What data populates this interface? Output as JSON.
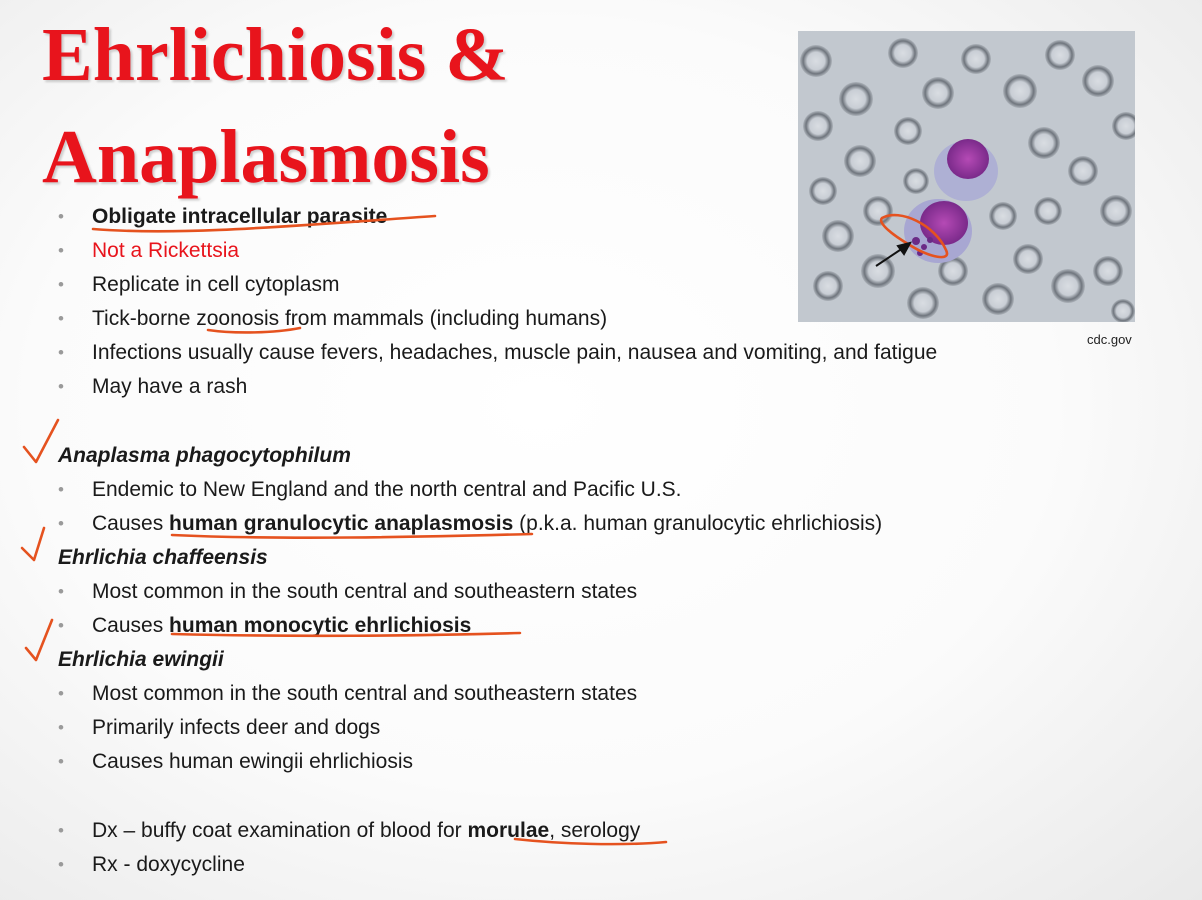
{
  "title": [
    "Ehrlichiosis &",
    "Anaplasmosis"
  ],
  "intro_bullets": [
    {
      "parts": [
        {
          "text": "Obligate intracellular parasite",
          "bold": true
        }
      ]
    },
    {
      "parts": [
        {
          "text": "Not a Rickettsia",
          "red": true
        }
      ]
    },
    {
      "parts": [
        {
          "text": "Replicate in cell cytoplasm"
        }
      ]
    },
    {
      "parts": [
        {
          "text": "Tick-borne zoonosis from mammals (including humans)"
        }
      ]
    },
    {
      "parts": [
        {
          "text": "Infections usually cause fevers, headaches, muscle pain, nausea and vomiting, and fatigue"
        }
      ]
    },
    {
      "parts": [
        {
          "text": "May have a rash"
        }
      ]
    }
  ],
  "sections": [
    {
      "heading": "Anaplasma phagocytophilum",
      "bullets": [
        {
          "parts": [
            {
              "text": "Endemic to New England and the north central and Pacific U.S."
            }
          ]
        },
        {
          "parts": [
            {
              "text": "Causes "
            },
            {
              "text": "human granulocytic anaplasmosis",
              "bold": true
            },
            {
              "text": " (p.k.a. human granulocytic ehrlichiosis)"
            }
          ]
        }
      ]
    },
    {
      "heading": "Ehrlichia chaffeensis",
      "bullets": [
        {
          "parts": [
            {
              "text": "Most common in the south central and southeastern states"
            }
          ]
        },
        {
          "parts": [
            {
              "text": "Causes "
            },
            {
              "text": "human monocytic ehrlichiosis",
              "bold": true
            }
          ]
        }
      ]
    },
    {
      "heading": "Ehrlichia ewingii",
      "bullets": [
        {
          "parts": [
            {
              "text": "Most common in the south central and southeastern states"
            }
          ]
        },
        {
          "parts": [
            {
              "text": "Primarily infects deer and dogs"
            }
          ]
        },
        {
          "parts": [
            {
              "text": "Causes human ewingii ehrlichiosis"
            }
          ]
        }
      ]
    }
  ],
  "closing_bullets": [
    {
      "parts": [
        {
          "text": "Dx – buffy coat examination of blood for "
        },
        {
          "text": "morulae",
          "bold": true
        },
        {
          "text": ", serology"
        }
      ]
    },
    {
      "parts": [
        {
          "text": "Rx - doxycycline"
        }
      ]
    }
  ],
  "figure": {
    "credit": "cdc.gov"
  },
  "colors": {
    "title": "#e8141c",
    "annotation": "#e5521f",
    "bullet": "#9a9a9a"
  }
}
